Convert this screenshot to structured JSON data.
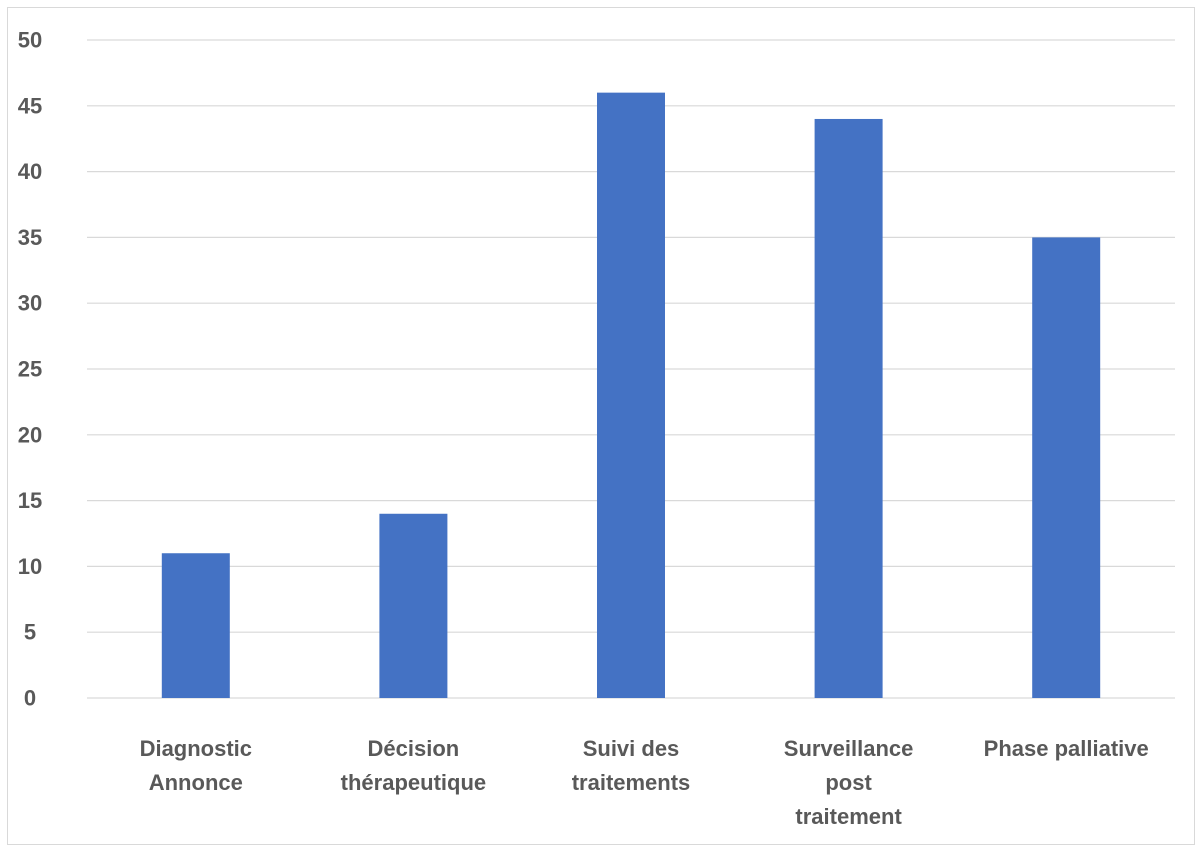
{
  "chart_data": {
    "type": "bar",
    "title": "",
    "xlabel": "",
    "ylabel": "",
    "categories": [
      [
        "Diagnostic",
        "Annonce"
      ],
      [
        "Décision",
        "thérapeutique"
      ],
      [
        "Suivi des",
        "traitements"
      ],
      [
        "Surveillance",
        "post",
        "traitement"
      ],
      [
        "Phase palliative"
      ]
    ],
    "values": [
      11,
      14,
      46,
      44,
      35
    ],
    "ylim": [
      0,
      50
    ],
    "yticks": [
      0,
      5,
      10,
      15,
      20,
      25,
      30,
      35,
      40,
      45,
      50
    ],
    "grid": true,
    "legend": "none",
    "colors": {
      "bar": "#4472C4",
      "grid": "#d9d9d9",
      "text": "#595959",
      "border": "#d9d9d9"
    }
  }
}
